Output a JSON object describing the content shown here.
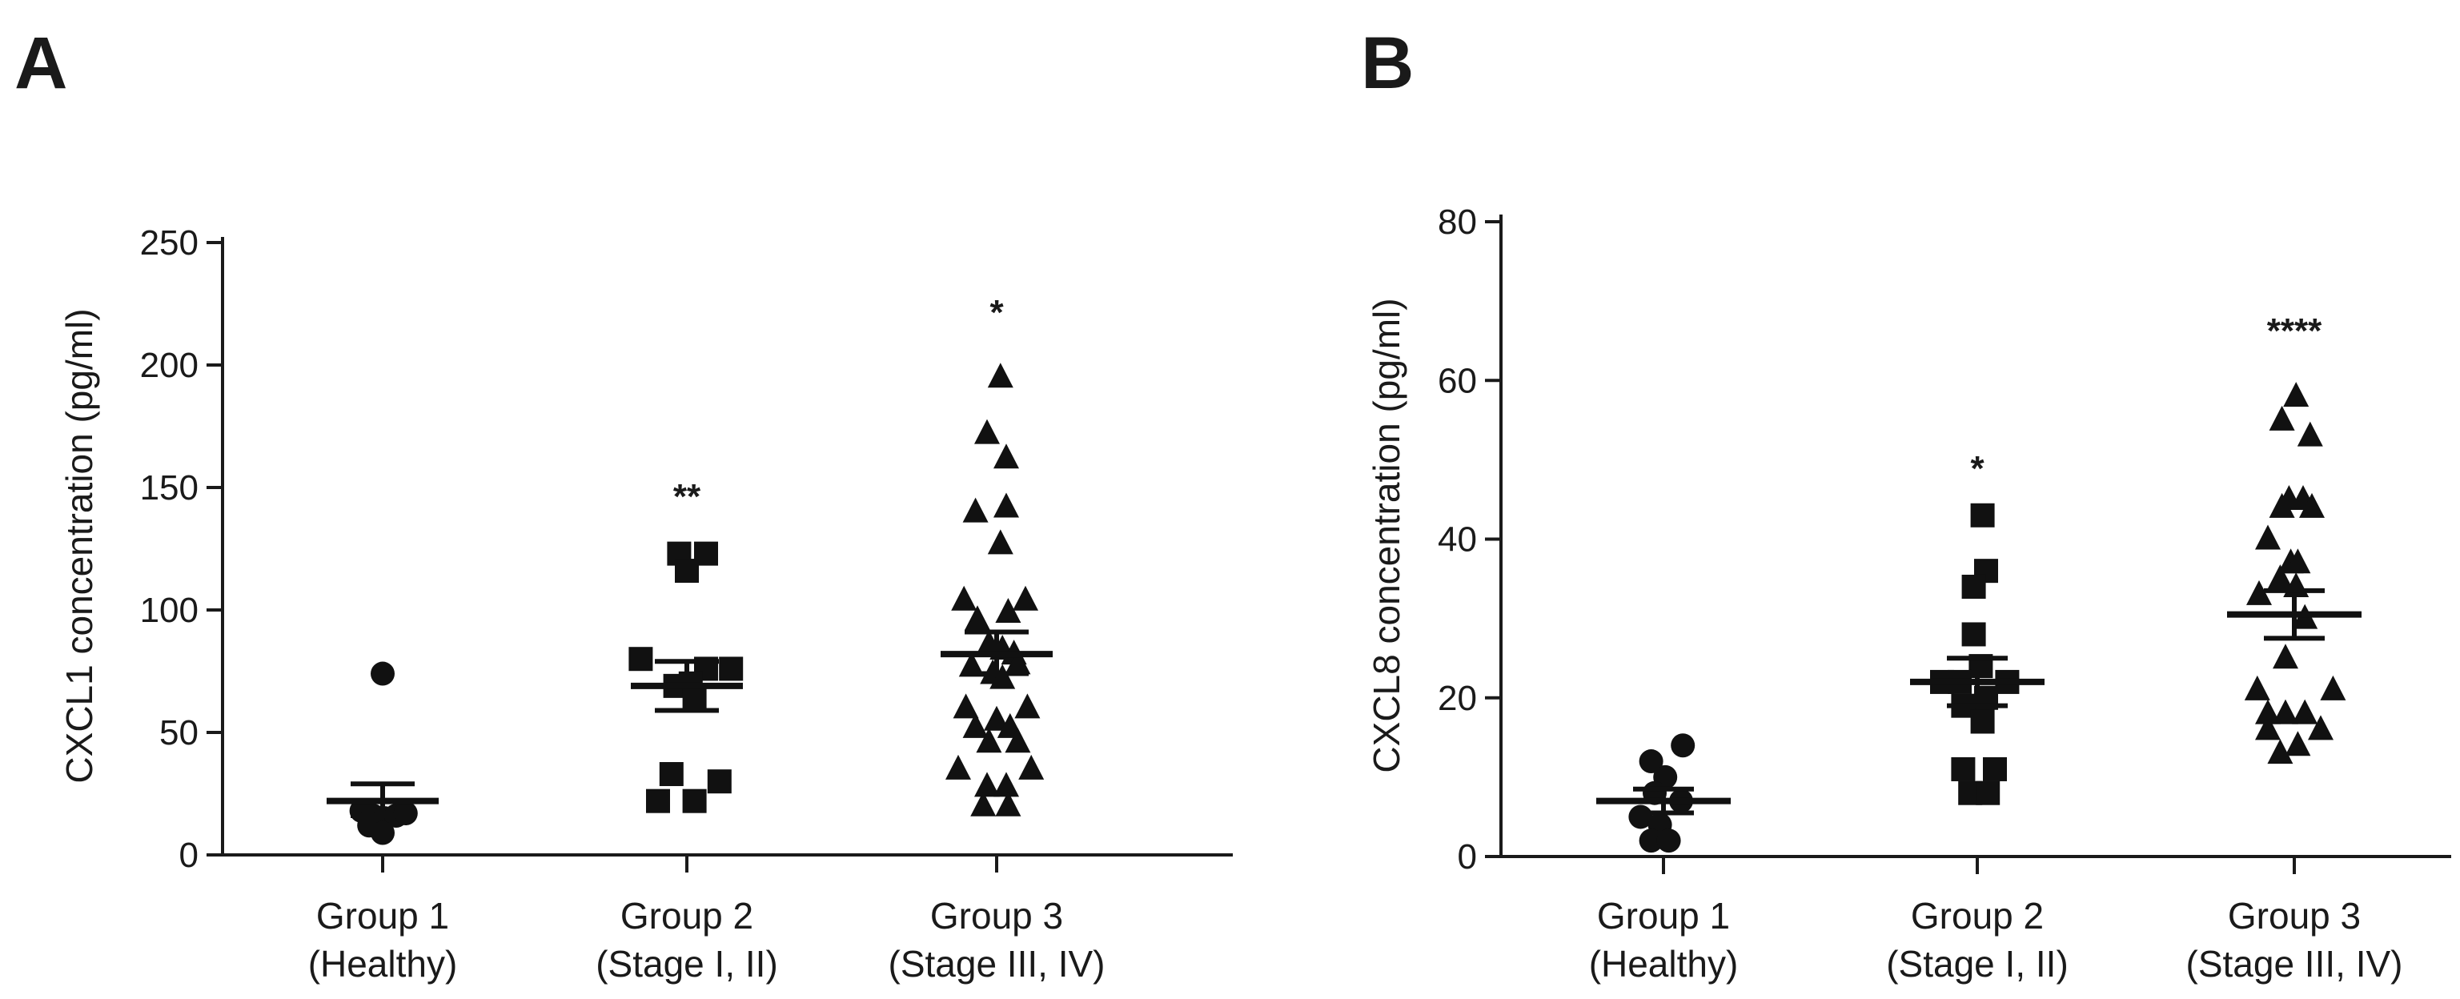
{
  "chart_data": [
    {
      "type": "scatter",
      "panel": "A",
      "ylabel": "CXCL1 concentration (pg/ml)",
      "xlabel": "",
      "ylim": [
        0,
        250
      ],
      "yticks": [
        0,
        50,
        100,
        150,
        200,
        250
      ],
      "grid": false,
      "categories": [
        {
          "line1": "Group 1",
          "line2": "(Healthy)"
        },
        {
          "line1": "Group 2",
          "line2": "(Stage I, II)"
        },
        {
          "line1": "Group 3",
          "line2": "(Stage III, IV)"
        }
      ],
      "series": [
        {
          "name": "Group 1 (Healthy)",
          "marker": "circle",
          "mean": 22,
          "sem_low": 16,
          "sem_high": 29,
          "significance": "",
          "points": [
            {
              "dx": 0,
              "y": 74
            },
            {
              "dx": -0.22,
              "y": 18
            },
            {
              "dx": -0.1,
              "y": 16
            },
            {
              "dx": 0.02,
              "y": 15
            },
            {
              "dx": 0.14,
              "y": 16
            },
            {
              "dx": 0.24,
              "y": 17
            },
            {
              "dx": -0.14,
              "y": 12
            },
            {
              "dx": 0.0,
              "y": 9
            }
          ]
        },
        {
          "name": "Group 2 (Stage I, II)",
          "marker": "square",
          "mean": 69,
          "sem_low": 59,
          "sem_high": 79,
          "significance": "**",
          "points": [
            {
              "dx": -0.08,
              "y": 123
            },
            {
              "dx": 0.2,
              "y": 123
            },
            {
              "dx": 0.0,
              "y": 116
            },
            {
              "dx": -0.48,
              "y": 80
            },
            {
              "dx": 0.2,
              "y": 76
            },
            {
              "dx": 0.46,
              "y": 76
            },
            {
              "dx": 0.04,
              "y": 70
            },
            {
              "dx": -0.12,
              "y": 69
            },
            {
              "dx": 0.08,
              "y": 63
            },
            {
              "dx": -0.16,
              "y": 33
            },
            {
              "dx": 0.34,
              "y": 30
            },
            {
              "dx": -0.3,
              "y": 22
            },
            {
              "dx": 0.08,
              "y": 22
            }
          ]
        },
        {
          "name": "Group 3 (Stage III, IV)",
          "marker": "triangle",
          "mean": 82,
          "sem_low": 74,
          "sem_high": 91,
          "significance": "*",
          "points": [
            {
              "dx": 0.04,
              "y": 195
            },
            {
              "dx": -0.1,
              "y": 172
            },
            {
              "dx": 0.1,
              "y": 162
            },
            {
              "dx": -0.22,
              "y": 140
            },
            {
              "dx": 0.1,
              "y": 142
            },
            {
              "dx": 0.04,
              "y": 127
            },
            {
              "dx": -0.34,
              "y": 104
            },
            {
              "dx": 0.3,
              "y": 104
            },
            {
              "dx": 0.12,
              "y": 99
            },
            {
              "dx": -0.2,
              "y": 96
            },
            {
              "dx": -0.08,
              "y": 86
            },
            {
              "dx": 0.06,
              "y": 84
            },
            {
              "dx": 0.18,
              "y": 82
            },
            {
              "dx": -0.26,
              "y": 77
            },
            {
              "dx": 0.22,
              "y": 78
            },
            {
              "dx": -0.04,
              "y": 74
            },
            {
              "dx": 0.06,
              "y": 72
            },
            {
              "dx": -0.32,
              "y": 60
            },
            {
              "dx": 0.32,
              "y": 60
            },
            {
              "dx": 0.0,
              "y": 55
            },
            {
              "dx": -0.22,
              "y": 52
            },
            {
              "dx": 0.14,
              "y": 52
            },
            {
              "dx": -0.08,
              "y": 46
            },
            {
              "dx": 0.22,
              "y": 46
            },
            {
              "dx": -0.4,
              "y": 35
            },
            {
              "dx": 0.36,
              "y": 35
            },
            {
              "dx": -0.1,
              "y": 28
            },
            {
              "dx": 0.1,
              "y": 28
            },
            {
              "dx": -0.14,
              "y": 20
            },
            {
              "dx": 0.12,
              "y": 20
            }
          ]
        }
      ]
    },
    {
      "type": "scatter",
      "panel": "B",
      "ylabel": "CXCL8 concentration (pg/ml)",
      "xlabel": "",
      "ylim": [
        0,
        80
      ],
      "yticks": [
        0,
        20,
        40,
        60,
        80
      ],
      "grid": false,
      "categories": [
        {
          "line1": "Group 1",
          "line2": "(Healthy)"
        },
        {
          "line1": "Group 2",
          "line2": "(Stage I, II)"
        },
        {
          "line1": "Group 3",
          "line2": "(Stage III, IV)"
        }
      ],
      "series": [
        {
          "name": "Group 1 (Healthy)",
          "marker": "circle",
          "mean": 7,
          "sem_low": 5.5,
          "sem_high": 8.5,
          "significance": "",
          "points": [
            {
              "dx": 0.22,
              "y": 14
            },
            {
              "dx": -0.14,
              "y": 12
            },
            {
              "dx": 0.02,
              "y": 10
            },
            {
              "dx": -0.1,
              "y": 8
            },
            {
              "dx": 0.2,
              "y": 7
            },
            {
              "dx": -0.26,
              "y": 5
            },
            {
              "dx": -0.04,
              "y": 4
            },
            {
              "dx": -0.14,
              "y": 2
            },
            {
              "dx": 0.06,
              "y": 2
            }
          ]
        },
        {
          "name": "Group 2 (Stage I, II)",
          "marker": "square",
          "mean": 22,
          "sem_low": 19,
          "sem_high": 25,
          "significance": "*",
          "points": [
            {
              "dx": 0.06,
              "y": 43
            },
            {
              "dx": 0.1,
              "y": 36
            },
            {
              "dx": -0.04,
              "y": 34
            },
            {
              "dx": -0.04,
              "y": 28
            },
            {
              "dx": 0.04,
              "y": 24
            },
            {
              "dx": -0.4,
              "y": 22
            },
            {
              "dx": -0.2,
              "y": 22
            },
            {
              "dx": 0.34,
              "y": 22
            },
            {
              "dx": 0.1,
              "y": 20
            },
            {
              "dx": -0.16,
              "y": 19
            },
            {
              "dx": 0.06,
              "y": 17
            },
            {
              "dx": -0.16,
              "y": 11
            },
            {
              "dx": 0.2,
              "y": 11
            },
            {
              "dx": -0.08,
              "y": 8
            },
            {
              "dx": 0.12,
              "y": 8
            }
          ]
        },
        {
          "name": "Group 3 (Stage III, IV)",
          "marker": "triangle",
          "mean": 30.5,
          "sem_low": 27.5,
          "sem_high": 33.5,
          "significance": "****",
          "points": [
            {
              "dx": 0.02,
              "y": 58
            },
            {
              "dx": -0.14,
              "y": 55
            },
            {
              "dx": 0.18,
              "y": 53
            },
            {
              "dx": -0.06,
              "y": 45
            },
            {
              "dx": 0.1,
              "y": 45
            },
            {
              "dx": -0.14,
              "y": 44
            },
            {
              "dx": 0.2,
              "y": 44
            },
            {
              "dx": -0.3,
              "y": 40
            },
            {
              "dx": -0.04,
              "y": 37
            },
            {
              "dx": 0.04,
              "y": 37
            },
            {
              "dx": -0.16,
              "y": 35
            },
            {
              "dx": -0.4,
              "y": 33
            },
            {
              "dx": 0.02,
              "y": 34
            },
            {
              "dx": 0.12,
              "y": 30
            },
            {
              "dx": -0.1,
              "y": 25
            },
            {
              "dx": -0.42,
              "y": 21
            },
            {
              "dx": 0.44,
              "y": 21
            },
            {
              "dx": -0.3,
              "y": 18
            },
            {
              "dx": -0.1,
              "y": 18
            },
            {
              "dx": 0.12,
              "y": 18
            },
            {
              "dx": -0.3,
              "y": 16
            },
            {
              "dx": 0.3,
              "y": 16
            },
            {
              "dx": -0.16,
              "y": 13
            },
            {
              "dx": 0.04,
              "y": 14
            }
          ]
        }
      ]
    }
  ]
}
